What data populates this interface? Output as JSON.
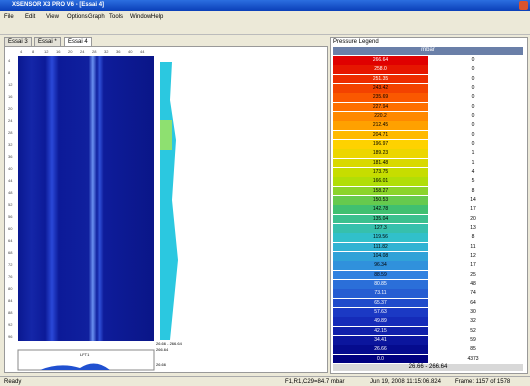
{
  "window": {
    "title": "XSENSOR X3 PRO V6 - [Essai 4]"
  },
  "menu": [
    "File",
    "Edit",
    "View",
    "Options",
    "Graph",
    "Tools",
    "Window",
    "Help"
  ],
  "tabs": [
    "Essai 3",
    "Essai *",
    "Essai 4"
  ],
  "ruler": {
    "top": [
      "4",
      "8",
      "12",
      "16",
      "20",
      "24",
      "28",
      "32",
      "36",
      "40",
      "44"
    ],
    "left": [
      "4",
      "8",
      "12",
      "16",
      "20",
      "24",
      "28",
      "32",
      "36",
      "40",
      "44",
      "48",
      "52",
      "56",
      "60",
      "64",
      "68",
      "72",
      "76",
      "80",
      "84",
      "88",
      "92",
      "96"
    ]
  },
  "side": {
    "range": "26.66 - 266.64",
    "max": "266.64",
    "min": "26.66",
    "sensor": "LFT1"
  },
  "legend": {
    "title": "Pressure Legend",
    "unit": "mbar",
    "rows": [
      [
        "266.64",
        "0"
      ],
      [
        "258.0",
        "0"
      ],
      [
        "251.35",
        "0"
      ],
      [
        "243.42",
        "0"
      ],
      [
        "235.69",
        "0"
      ],
      [
        "227.94",
        "0"
      ],
      [
        "220.2",
        "0"
      ],
      [
        "212.45",
        "0"
      ],
      [
        "204.71",
        "0"
      ],
      [
        "196.97",
        "0"
      ],
      [
        "189.23",
        "1"
      ],
      [
        "181.48",
        "1"
      ],
      [
        "173.75",
        "4"
      ],
      [
        "166.01",
        "5"
      ],
      [
        "158.27",
        "8"
      ],
      [
        "150.53",
        "14"
      ],
      [
        "142.78",
        "17"
      ],
      [
        "135.04",
        "20"
      ],
      [
        "127.3",
        "13"
      ],
      [
        "119.56",
        "8"
      ],
      [
        "111.82",
        "11"
      ],
      [
        "104.08",
        "12"
      ],
      [
        "96.34",
        "17"
      ],
      [
        "88.59",
        "25"
      ],
      [
        "80.85",
        "48"
      ],
      [
        "73.11",
        "74"
      ],
      [
        "65.37",
        "64"
      ],
      [
        "57.63",
        "30"
      ],
      [
        "49.89",
        "32"
      ],
      [
        "42.15",
        "52"
      ],
      [
        "34.41",
        "59"
      ],
      [
        "26.66",
        "85"
      ],
      [
        "0.0",
        "4373"
      ]
    ],
    "range": "26.66 - 266.64"
  },
  "status": {
    "ready": "Ready",
    "cell": "F1,R1,C29=84.7 mbar",
    "time": "Jun 19, 2008  11:15:06.824",
    "frame": "Frame: 1157 of 1578"
  }
}
